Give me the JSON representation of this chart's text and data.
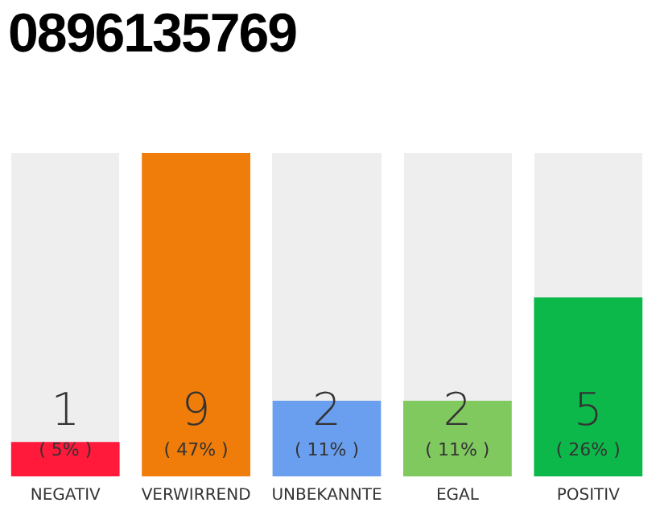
{
  "chart_data": {
    "type": "bar",
    "title": "0896135769",
    "categories": [
      "NEGATIV",
      "VERWIRREND",
      "UNBEKANNTE",
      "EGAL",
      "POSITIV"
    ],
    "values": [
      5,
      47,
      11,
      11,
      26
    ],
    "annotations": [
      "1",
      "9",
      "2",
      "2",
      "5"
    ],
    "colors": [
      "#ff1a3c",
      "#f07d0a",
      "#6a9ff0",
      "#80c95f",
      "#0db84a"
    ],
    "value_labels": [
      "( 5% )",
      "( 47% )",
      "( 11% )",
      "( 11% )",
      "( 26% )"
    ],
    "tick_labels": "x",
    "grid": false,
    "legend": false
  }
}
